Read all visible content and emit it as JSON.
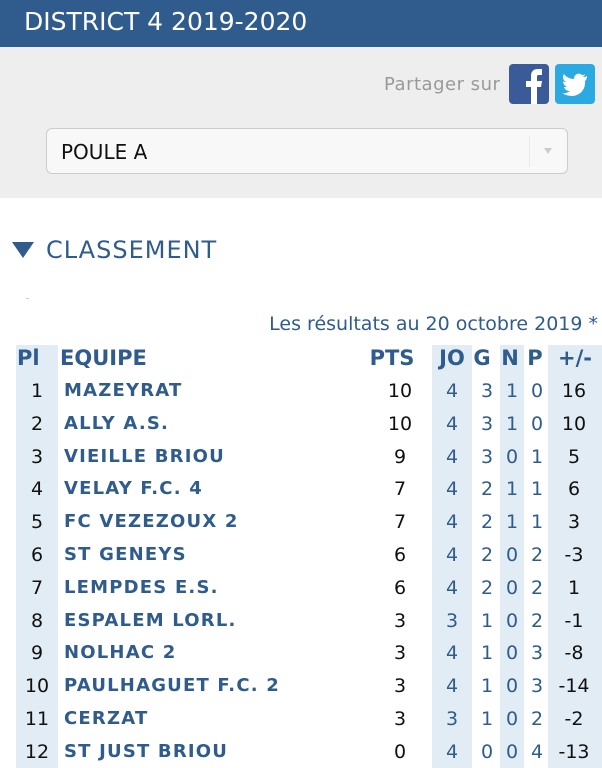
{
  "header": {
    "title": "DISTRICT 4 2019-2020"
  },
  "share": {
    "label": "Partager sur"
  },
  "select": {
    "value": "POULE A"
  },
  "section": {
    "title": "CLASSEMENT"
  },
  "table": {
    "note": "Les résultats au 20 octobre 2019 *",
    "columns": [
      "Pl",
      "EQUIPE",
      "PTS",
      "JO",
      "G",
      "N",
      "P",
      "+/-"
    ],
    "rows": [
      [
        1,
        "MAZEYRAT",
        10,
        4,
        3,
        1,
        0,
        16
      ],
      [
        2,
        "ALLY A.S.",
        10,
        4,
        3,
        1,
        0,
        10
      ],
      [
        3,
        "VIEILLE BRIOU",
        9,
        4,
        3,
        0,
        1,
        5
      ],
      [
        4,
        "VELAY F.C. 4",
        7,
        4,
        2,
        1,
        1,
        6
      ],
      [
        5,
        "FC VEZEZOUX 2",
        7,
        4,
        2,
        1,
        1,
        3
      ],
      [
        6,
        "ST GENEYS",
        6,
        4,
        2,
        0,
        2,
        -3
      ],
      [
        7,
        "LEMPDES E.S.",
        6,
        4,
        2,
        0,
        2,
        1
      ],
      [
        8,
        "ESPALEM LORL.",
        3,
        3,
        1,
        0,
        2,
        -1
      ],
      [
        9,
        "NOLHAC 2",
        3,
        4,
        1,
        0,
        3,
        -8
      ],
      [
        10,
        "PAULHAGUET F.C. 2",
        3,
        4,
        1,
        0,
        3,
        -14
      ],
      [
        11,
        "CERZAT",
        3,
        3,
        1,
        0,
        2,
        -2
      ],
      [
        12,
        "ST JUST BRIOU",
        0,
        4,
        0,
        0,
        4,
        -13
      ]
    ]
  }
}
